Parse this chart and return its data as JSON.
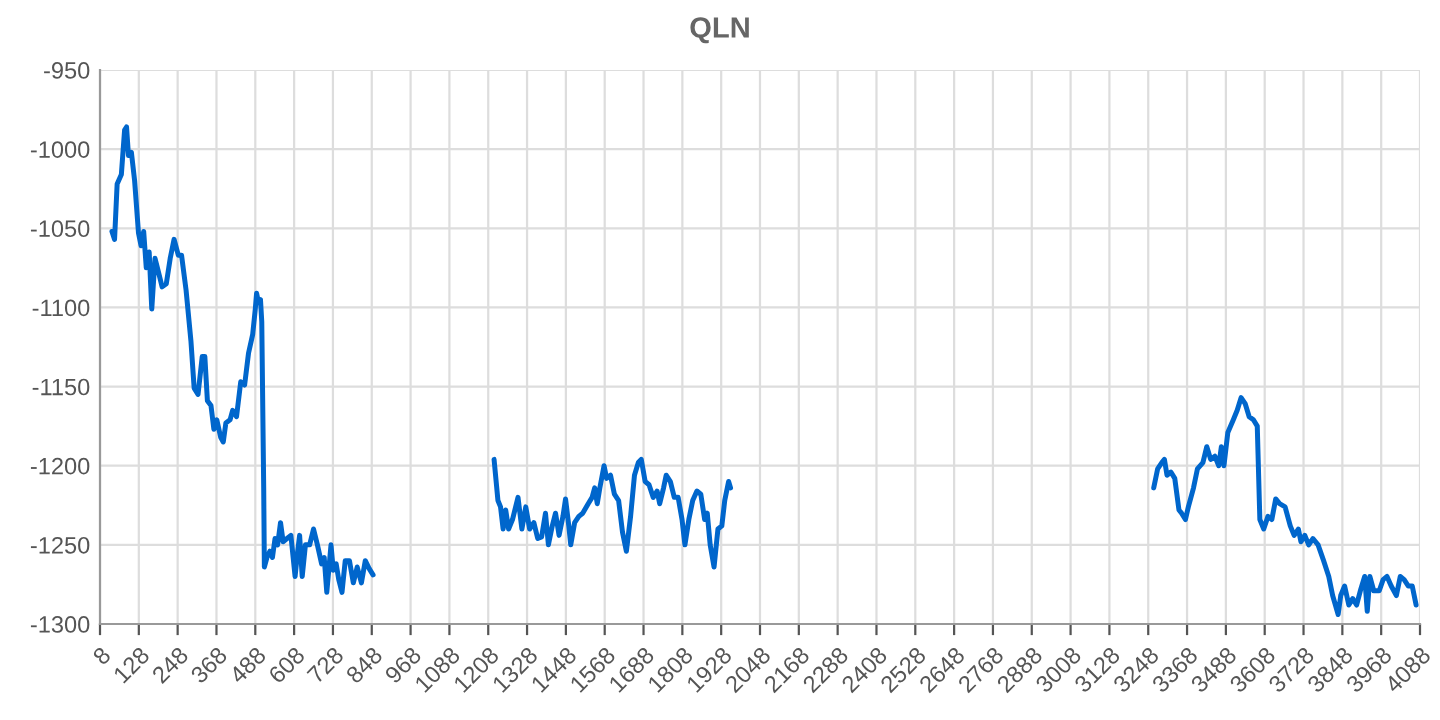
{
  "chart_data": {
    "type": "line",
    "title": "QLN",
    "xlim": [
      8,
      4088
    ],
    "xticks": [
      8,
      128,
      248,
      368,
      488,
      608,
      728,
      848,
      968,
      1088,
      1208,
      1328,
      1448,
      1568,
      1688,
      1808,
      1928,
      2048,
      2168,
      2288,
      2408,
      2528,
      2648,
      2768,
      2888,
      3008,
      3128,
      3248,
      3368,
      3488,
      3608,
      3728,
      3848,
      3968,
      4088
    ],
    "ylim": [
      -1300,
      -950
    ],
    "yticks": [
      -1300,
      -1250,
      -1200,
      -1150,
      -1100,
      -1050,
      -1000,
      -950
    ],
    "grid": true,
    "marker": "none",
    "line_style": "solid",
    "series": [
      {
        "color": "#0066cc",
        "x": [
          45,
          53,
          61,
          74,
          84,
          90,
          96,
          105,
          115,
          127,
          135,
          143,
          151,
          160,
          168,
          178,
          188,
          200,
          213,
          225,
          237,
          250,
          260,
          274,
          289,
          299,
          311,
          324,
          332,
          340,
          351,
          360,
          369,
          381,
          389,
          397,
          410,
          418,
          430,
          443,
          455,
          467,
          480,
          488,
          492,
          498,
          504,
          508,
          514,
          516,
          524,
          533,
          541,
          549,
          557,
          566,
          574,
          586,
          598,
          611,
          619,
          625,
          633,
          643,
          656,
          668,
          680,
          693,
          701,
          709,
          722,
          729,
          738,
          746,
          756,
          766,
          779,
          791,
          803,
          816,
          828,
          840,
          852,
          1000,
          1226,
          1238,
          1246,
          1254,
          1262,
          1271,
          1283,
          1300,
          1312,
          1324,
          1336,
          1349,
          1361,
          1373,
          1385,
          1394,
          1406,
          1416,
          1427,
          1439,
          1447,
          1457,
          1463,
          1475,
          1488,
          1500,
          1517,
          1529,
          1537,
          1545,
          1553,
          1566,
          1574,
          1586,
          1598,
          1611,
          1623,
          1635,
          1648,
          1660,
          1672,
          1681,
          1693,
          1705,
          1718,
          1730,
          1738,
          1750,
          1758,
          1771,
          1783,
          1795,
          1807,
          1816,
          1828,
          1840,
          1853,
          1865,
          1877,
          1885,
          1894,
          1906,
          1918,
          1930,
          1939,
          1951,
          1957,
          2500,
          3265,
          3277,
          3290,
          3298,
          3306,
          3318,
          3330,
          3343,
          3351,
          3363,
          3372,
          3388,
          3400,
          3417,
          3429,
          3441,
          3454,
          3466,
          3474,
          3482,
          3494,
          3511,
          3523,
          3535,
          3548,
          3560,
          3573,
          3585,
          3593,
          3605,
          3618,
          3630,
          3642,
          3654,
          3671,
          3687,
          3699,
          3712,
          3720,
          3732,
          3744,
          3757,
          3773,
          3790,
          3806,
          3818,
          3835,
          3843,
          3855,
          3868,
          3880,
          3892,
          3905,
          3917,
          3925,
          3933,
          3945,
          3962,
          3974,
          3986,
          3999,
          4015,
          4027,
          4039,
          4052,
          4064,
          4076
        ],
        "values": [
          -1052,
          -1057,
          -1022,
          -1016,
          -988,
          -986,
          -1004,
          -1002,
          -1020,
          -1053,
          -1061,
          -1052,
          -1075,
          -1065,
          -1101,
          -1069,
          -1077,
          -1087,
          -1085,
          -1069,
          -1057,
          -1067,
          -1067,
          -1089,
          -1121,
          -1151,
          -1155,
          -1131,
          -1131,
          -1159,
          -1162,
          -1177,
          -1171,
          -1182,
          -1185,
          -1173,
          -1171,
          -1165,
          -1169,
          -1147,
          -1149,
          -1129,
          -1117,
          -1101,
          -1091,
          -1097,
          -1095,
          -1109,
          -1214,
          -1264,
          -1258,
          -1254,
          -1258,
          -1246,
          -1250,
          -1236,
          -1248,
          -1246,
          -1244,
          -1270,
          -1254,
          -1244,
          -1270,
          -1250,
          -1250,
          -1240,
          -1250,
          -1262,
          -1258,
          -1280,
          -1250,
          -1266,
          -1262,
          -1272,
          -1280,
          -1260,
          -1260,
          -1274,
          -1264,
          -1274,
          -1260,
          -1265,
          -1269,
          null,
          -1196,
          -1222,
          -1226,
          -1240,
          -1228,
          -1240,
          -1234,
          -1220,
          -1240,
          -1226,
          -1240,
          -1236,
          -1246,
          -1245,
          -1230,
          -1250,
          -1238,
          -1230,
          -1244,
          -1232,
          -1221,
          -1238,
          -1250,
          -1236,
          -1232,
          -1230,
          -1224,
          -1220,
          -1214,
          -1224,
          -1214,
          -1200,
          -1208,
          -1206,
          -1218,
          -1222,
          -1242,
          -1254,
          -1232,
          -1206,
          -1198,
          -1196,
          -1210,
          -1212,
          -1220,
          -1216,
          -1224,
          -1214,
          -1206,
          -1210,
          -1220,
          -1220,
          -1234,
          -1250,
          -1234,
          -1222,
          -1216,
          -1218,
          -1234,
          -1230,
          -1250,
          -1264,
          -1240,
          -1238,
          -1222,
          -1210,
          -1214,
          null,
          -1214,
          -1202,
          -1198,
          -1196,
          -1206,
          -1204,
          -1208,
          -1228,
          -1230,
          -1234,
          -1226,
          -1214,
          -1202,
          -1198,
          -1188,
          -1196,
          -1194,
          -1200,
          -1188,
          -1200,
          -1179,
          -1171,
          -1165,
          -1157,
          -1161,
          -1169,
          -1171,
          -1175,
          -1234,
          -1240,
          -1232,
          -1234,
          -1221,
          -1224,
          -1226,
          -1238,
          -1244,
          -1240,
          -1248,
          -1244,
          -1250,
          -1246,
          -1250,
          -1260,
          -1270,
          -1282,
          -1294,
          -1282,
          -1276,
          -1288,
          -1284,
          -1288,
          -1278,
          -1270,
          -1292,
          -1270,
          -1279,
          -1279,
          -1272,
          -1270,
          -1276,
          -1282,
          -1270,
          -1272,
          -1276,
          -1276,
          -1288
        ]
      }
    ]
  }
}
